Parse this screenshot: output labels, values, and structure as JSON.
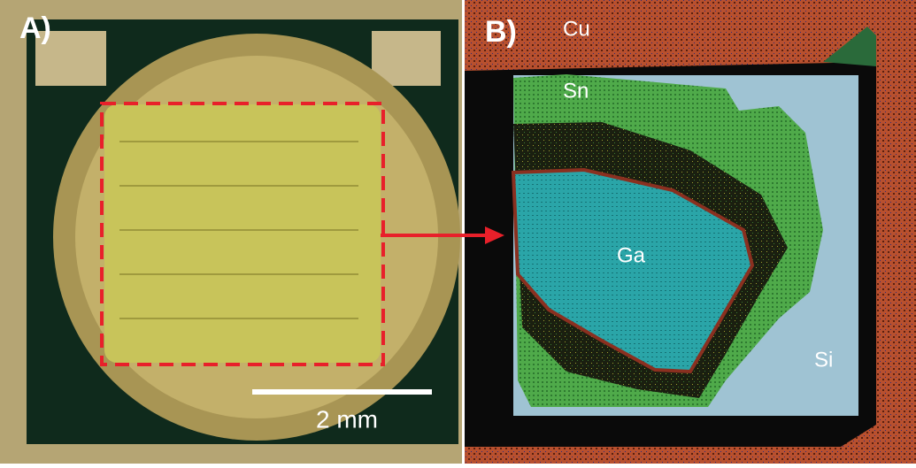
{
  "panels": [
    {
      "label": "A)",
      "scale_bar": "2 mm"
    },
    {
      "label": "B)",
      "regions": [
        "Cu",
        "Sn",
        "Ga",
        "Si"
      ]
    }
  ]
}
